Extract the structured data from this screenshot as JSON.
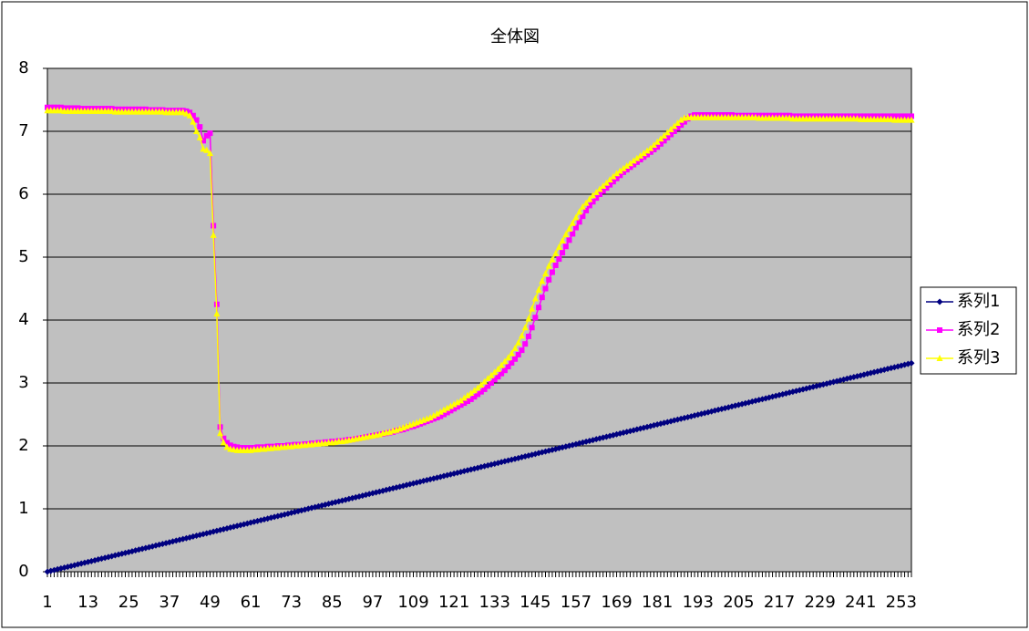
{
  "chart_data": {
    "type": "line",
    "title": "全体図",
    "categories": [
      1,
      null,
      null,
      null,
      null,
      null,
      null,
      null,
      null,
      null,
      null,
      null,
      13,
      null,
      null,
      null,
      null,
      null,
      null,
      null,
      null,
      null,
      null,
      null,
      25,
      null,
      null,
      null,
      null,
      null,
      null,
      null,
      null,
      null,
      null,
      null,
      37,
      null,
      null,
      null,
      null,
      null,
      null,
      null,
      null,
      null,
      null,
      null,
      49,
      null,
      null,
      null,
      null,
      null,
      null,
      null,
      null,
      null,
      null,
      null,
      61,
      null,
      null,
      null,
      null,
      null,
      null,
      null,
      null,
      null,
      null,
      null,
      73,
      null,
      null,
      null,
      null,
      null,
      null,
      null,
      null,
      null,
      null,
      null,
      85,
      null,
      null,
      null,
      null,
      null,
      null,
      null,
      null,
      null,
      null,
      null,
      97,
      null,
      null,
      null,
      null,
      null,
      null,
      null,
      null,
      null,
      null,
      null,
      109,
      null,
      null,
      null,
      null,
      null,
      null,
      null,
      null,
      null,
      null,
      null,
      121,
      null,
      null,
      null,
      null,
      null,
      null,
      null,
      null,
      null,
      null,
      null,
      133,
      null,
      null,
      null,
      null,
      null,
      null,
      null,
      null,
      null,
      null,
      null,
      145,
      null,
      null,
      null,
      null,
      null,
      null,
      null,
      null,
      null,
      null,
      null,
      157,
      null,
      null,
      null,
      null,
      null,
      null,
      null,
      null,
      null,
      null,
      null,
      169,
      null,
      null,
      null,
      null,
      null,
      null,
      null,
      null,
      null,
      null,
      null,
      181,
      null,
      null,
      null,
      null,
      null,
      null,
      null,
      null,
      null,
      null,
      null,
      193,
      null,
      null,
      null,
      null,
      null,
      null,
      null,
      null,
      null,
      null,
      null,
      205,
      null,
      null,
      null,
      null,
      null,
      null,
      null,
      null,
      null,
      null,
      null,
      217,
      null,
      null,
      null,
      null,
      null,
      null,
      null,
      null,
      null,
      null,
      null,
      229,
      null,
      null,
      null,
      null,
      null,
      null,
      null,
      null,
      null,
      null,
      null,
      241,
      null,
      null,
      null,
      null,
      null,
      null,
      null,
      null,
      null,
      null,
      null,
      253,
      null,
      null,
      null
    ],
    "series": [
      {
        "name": "系列1",
        "color": "#000080",
        "marker": "diamond",
        "values": [
          0,
          0.013,
          0.026,
          0.039,
          0.052,
          0.065,
          0.078,
          0.091,
          0.104,
          0.117,
          0.13,
          0.143,
          0.156,
          0.169,
          0.182,
          0.195,
          0.208,
          0.221,
          0.234,
          0.247,
          0.26,
          0.273,
          0.286,
          0.299,
          0.312,
          0.325,
          0.338,
          0.351,
          0.364,
          0.377,
          0.39,
          0.403,
          0.416,
          0.429,
          0.442,
          0.455,
          0.468,
          0.481,
          0.494,
          0.507,
          0.52,
          0.533,
          0.546,
          0.559,
          0.572,
          0.585,
          0.598,
          0.611,
          0.624,
          0.637,
          0.65,
          0.663,
          0.676,
          0.689,
          0.702,
          0.715,
          0.728,
          0.741,
          0.754,
          0.767,
          0.78,
          0.793,
          0.806,
          0.819,
          0.832,
          0.845,
          0.858,
          0.871,
          0.884,
          0.897,
          0.91,
          0.923,
          0.936,
          0.949,
          0.962,
          0.975,
          0.988,
          1.001,
          1.014,
          1.027,
          1.04,
          1.053,
          1.066,
          1.079,
          1.092,
          1.105,
          1.118,
          1.131,
          1.144,
          1.157,
          1.17,
          1.183,
          1.196,
          1.209,
          1.222,
          1.235,
          1.248,
          1.261,
          1.274,
          1.287,
          1.3,
          1.313,
          1.326,
          1.339,
          1.352,
          1.365,
          1.378,
          1.391,
          1.404,
          1.417,
          1.43,
          1.443,
          1.456,
          1.469,
          1.482,
          1.495,
          1.508,
          1.521,
          1.534,
          1.547,
          1.56,
          1.573,
          1.586,
          1.599,
          1.612,
          1.625,
          1.638,
          1.651,
          1.664,
          1.677,
          1.69,
          1.703,
          1.716,
          1.729,
          1.742,
          1.755,
          1.768,
          1.781,
          1.794,
          1.807,
          1.82,
          1.833,
          1.846,
          1.859,
          1.872,
          1.885,
          1.898,
          1.911,
          1.924,
          1.937,
          1.95,
          1.963,
          1.976,
          1.989,
          2.002,
          2.015,
          2.028,
          2.041,
          2.054,
          2.067,
          2.08,
          2.093,
          2.106,
          2.119,
          2.132,
          2.145,
          2.158,
          2.171,
          2.184,
          2.197,
          2.21,
          2.223,
          2.236,
          2.249,
          2.262,
          2.275,
          2.288,
          2.301,
          2.314,
          2.327,
          2.34,
          2.353,
          2.366,
          2.379,
          2.392,
          2.405,
          2.418,
          2.431,
          2.444,
          2.457,
          2.47,
          2.483,
          2.496,
          2.509,
          2.522,
          2.535,
          2.548,
          2.561,
          2.574,
          2.587,
          2.6,
          2.613,
          2.626,
          2.639,
          2.652,
          2.665,
          2.678,
          2.691,
          2.704,
          2.717,
          2.73,
          2.743,
          2.756,
          2.769,
          2.782,
          2.795,
          2.808,
          2.821,
          2.834,
          2.847,
          2.86,
          2.873,
          2.886,
          2.899,
          2.912,
          2.925,
          2.938,
          2.951,
          2.964,
          2.977,
          2.99,
          3.003,
          3.016,
          3.029,
          3.042,
          3.055,
          3.068,
          3.081,
          3.094,
          3.107,
          3.12,
          3.133,
          3.146,
          3.159,
          3.172,
          3.185,
          3.198,
          3.211,
          3.224,
          3.237,
          3.25,
          3.263,
          3.276,
          3.289,
          3.302,
          3.315
        ]
      },
      {
        "name": "系列2",
        "color": "#ff00ff",
        "marker": "square",
        "values": [
          7.38,
          7.38,
          7.38,
          7.38,
          7.38,
          7.37,
          7.37,
          7.37,
          7.37,
          7.37,
          7.36,
          7.36,
          7.36,
          7.36,
          7.36,
          7.36,
          7.36,
          7.36,
          7.36,
          7.36,
          7.35,
          7.35,
          7.35,
          7.35,
          7.35,
          7.35,
          7.35,
          7.35,
          7.35,
          7.35,
          7.34,
          7.34,
          7.34,
          7.34,
          7.34,
          7.33,
          7.33,
          7.33,
          7.33,
          7.33,
          7.33,
          7.32,
          7.3,
          7.25,
          7.18,
          7.07,
          6.85,
          6.93,
          6.97,
          5.5,
          4.25,
          2.3,
          2.12,
          2.05,
          2.01,
          1.99,
          1.98,
          1.97,
          1.97,
          1.97,
          1.97,
          1.97,
          1.98,
          1.98,
          1.98,
          1.99,
          1.99,
          1.99,
          2.0,
          2.0,
          2.0,
          2.01,
          2.01,
          2.02,
          2.02,
          2.02,
          2.03,
          2.03,
          2.04,
          2.04,
          2.05,
          2.05,
          2.06,
          2.06,
          2.07,
          2.07,
          2.08,
          2.08,
          2.09,
          2.1,
          2.1,
          2.11,
          2.12,
          2.13,
          2.14,
          2.15,
          2.16,
          2.17,
          2.18,
          2.19,
          2.2,
          2.21,
          2.22,
          2.24,
          2.25,
          2.26,
          2.28,
          2.3,
          2.31,
          2.33,
          2.35,
          2.37,
          2.39,
          2.41,
          2.43,
          2.45,
          2.47,
          2.5,
          2.53,
          2.56,
          2.59,
          2.62,
          2.65,
          2.68,
          2.71,
          2.74,
          2.78,
          2.82,
          2.86,
          2.9,
          2.95,
          3.0,
          3.05,
          3.1,
          3.15,
          3.2,
          3.26,
          3.32,
          3.38,
          3.45,
          3.52,
          3.62,
          3.74,
          3.88,
          4.04,
          4.2,
          4.36,
          4.5,
          4.64,
          4.76,
          4.87,
          4.97,
          5.07,
          5.17,
          5.27,
          5.37,
          5.47,
          5.56,
          5.65,
          5.74,
          5.82,
          5.88,
          5.94,
          6.0,
          6.05,
          6.1,
          6.15,
          6.2,
          6.25,
          6.3,
          6.35,
          6.39,
          6.43,
          6.47,
          6.51,
          6.55,
          6.59,
          6.63,
          6.67,
          6.71,
          6.75,
          6.8,
          6.85,
          6.9,
          6.95,
          7.0,
          7.05,
          7.1,
          7.15,
          7.2,
          7.24,
          7.26,
          7.26,
          7.26,
          7.26,
          7.26,
          7.26,
          7.26,
          7.26,
          7.26,
          7.26,
          7.26,
          7.26,
          7.25,
          7.25,
          7.25,
          7.25,
          7.25,
          7.25,
          7.25,
          7.25,
          7.25,
          7.25,
          7.25,
          7.25,
          7.25,
          7.25,
          7.25,
          7.25,
          7.25,
          7.24,
          7.24,
          7.24,
          7.24,
          7.24,
          7.24,
          7.24,
          7.24,
          7.24,
          7.24,
          7.24,
          7.24,
          7.24,
          7.24,
          7.24,
          7.24,
          7.24,
          7.24,
          7.24,
          7.24,
          7.24,
          7.24,
          7.24,
          7.24,
          7.24,
          7.24,
          7.24,
          7.24,
          7.24,
          7.24,
          7.24,
          7.24,
          7.24,
          7.24,
          7.24,
          7.24
        ]
      },
      {
        "name": "系列3",
        "color": "#ffff00",
        "marker": "triangle",
        "values": [
          7.33,
          7.33,
          7.33,
          7.33,
          7.33,
          7.32,
          7.32,
          7.32,
          7.32,
          7.32,
          7.32,
          7.32,
          7.32,
          7.32,
          7.32,
          7.32,
          7.32,
          7.32,
          7.32,
          7.32,
          7.31,
          7.31,
          7.31,
          7.31,
          7.31,
          7.31,
          7.31,
          7.31,
          7.31,
          7.31,
          7.31,
          7.31,
          7.31,
          7.31,
          7.31,
          7.3,
          7.3,
          7.3,
          7.3,
          7.3,
          7.3,
          7.28,
          7.25,
          7.15,
          7.0,
          6.9,
          6.72,
          6.7,
          6.65,
          5.35,
          4.1,
          2.2,
          2.05,
          1.98,
          1.95,
          1.94,
          1.93,
          1.93,
          1.93,
          1.93,
          1.93,
          1.94,
          1.94,
          1.95,
          1.95,
          1.96,
          1.96,
          1.97,
          1.97,
          1.98,
          1.98,
          1.99,
          1.99,
          2.0,
          2.0,
          2.01,
          2.01,
          2.02,
          2.02,
          2.03,
          2.03,
          2.04,
          2.04,
          2.05,
          2.05,
          2.06,
          2.07,
          2.07,
          2.08,
          2.09,
          2.1,
          2.11,
          2.12,
          2.13,
          2.14,
          2.15,
          2.16,
          2.17,
          2.18,
          2.2,
          2.21,
          2.22,
          2.24,
          2.25,
          2.27,
          2.29,
          2.31,
          2.33,
          2.35,
          2.37,
          2.39,
          2.41,
          2.43,
          2.45,
          2.48,
          2.51,
          2.54,
          2.57,
          2.6,
          2.63,
          2.66,
          2.69,
          2.72,
          2.76,
          2.8,
          2.84,
          2.88,
          2.92,
          2.97,
          3.02,
          3.07,
          3.12,
          3.17,
          3.22,
          3.28,
          3.34,
          3.4,
          3.47,
          3.55,
          3.64,
          3.75,
          3.88,
          4.02,
          4.18,
          4.34,
          4.48,
          4.62,
          4.74,
          4.86,
          4.96,
          5.06,
          5.16,
          5.26,
          5.36,
          5.45,
          5.54,
          5.63,
          5.72,
          5.8,
          5.86,
          5.92,
          5.98,
          6.03,
          6.08,
          6.13,
          6.18,
          6.23,
          6.28,
          6.33,
          6.37,
          6.41,
          6.45,
          6.49,
          6.53,
          6.57,
          6.61,
          6.65,
          6.69,
          6.73,
          6.78,
          6.83,
          6.88,
          6.93,
          6.98,
          7.03,
          7.08,
          7.13,
          7.18,
          7.21,
          7.22,
          7.22,
          7.22,
          7.22,
          7.22,
          7.22,
          7.22,
          7.22,
          7.22,
          7.22,
          7.22,
          7.22,
          7.22,
          7.22,
          7.22,
          7.22,
          7.22,
          7.22,
          7.22,
          7.22,
          7.22,
          7.21,
          7.21,
          7.21,
          7.21,
          7.21,
          7.21,
          7.21,
          7.21,
          7.21,
          7.21,
          7.2,
          7.2,
          7.2,
          7.2,
          7.2,
          7.2,
          7.2,
          7.2,
          7.2,
          7.2,
          7.2,
          7.2,
          7.2,
          7.2,
          7.2,
          7.2,
          7.2,
          7.2,
          7.2,
          7.2,
          7.19,
          7.19,
          7.19,
          7.19,
          7.19,
          7.19,
          7.19,
          7.19,
          7.19,
          7.19,
          7.18,
          7.18,
          7.18,
          7.18,
          7.18,
          7.18
        ]
      }
    ],
    "ylim": [
      0,
      8
    ],
    "yticks": [
      0,
      1,
      2,
      3,
      4,
      5,
      6,
      7,
      8
    ],
    "grid": true,
    "legend": "right",
    "plot_background": "#c0c0c0"
  }
}
